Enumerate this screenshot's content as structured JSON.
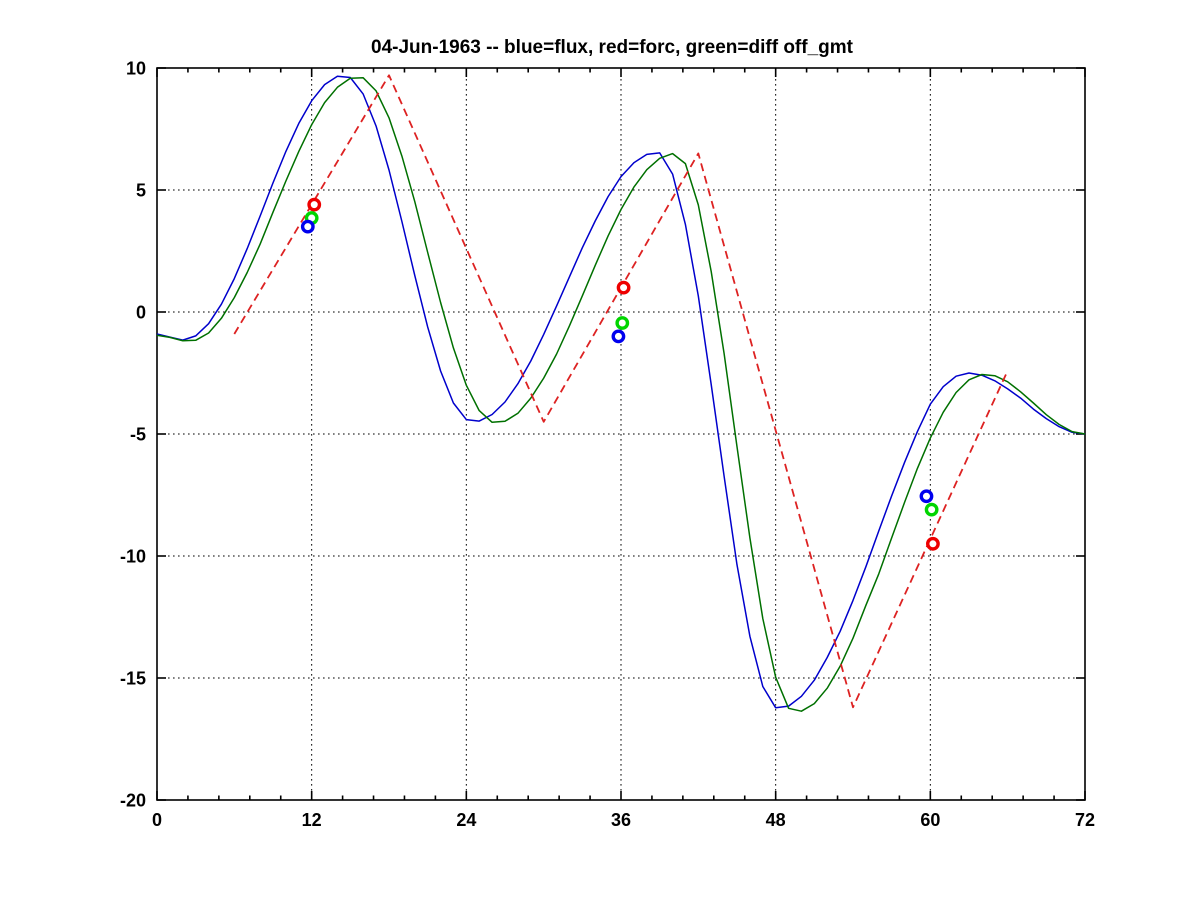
{
  "chart_data": {
    "type": "line",
    "title": "04-Jun-1963 -- blue=flux, red=forc, green=diff off_gmt",
    "xlabel": "",
    "ylabel": "",
    "xlim": [
      0,
      72
    ],
    "ylim": [
      -20,
      10
    ],
    "x_major_ticks": [
      0,
      12,
      24,
      36,
      48,
      60,
      72
    ],
    "x_major_tick_labels": [
      "0",
      "12",
      "24",
      "36",
      "48",
      "60",
      "72"
    ],
    "x_minor_step": 2.4,
    "y_major_ticks": [
      -20,
      -15,
      -10,
      -5,
      0,
      5,
      10
    ],
    "y_major_tick_labels": [
      "-20",
      "-15",
      "-10",
      "-5",
      "0",
      "5",
      "10"
    ],
    "grid": "dotted-at-major-ticks",
    "legend_position": "none (legend encoded in title)",
    "axis_color": "#000000",
    "background_color": "#ffffff",
    "series": [
      {
        "name": "flux",
        "color": "#0000cc",
        "style": "solid",
        "line_width": 1.5,
        "x_start": 0,
        "x_step": 1,
        "y": [
          -0.9,
          -1.03,
          -1.15,
          -0.98,
          -0.48,
          0.32,
          1.37,
          2.6,
          3.93,
          5.29,
          6.58,
          7.73,
          8.66,
          9.32,
          9.66,
          9.61,
          8.93,
          7.62,
          5.82,
          3.71,
          1.49,
          -0.62,
          -2.42,
          -3.73,
          -4.41,
          -4.47,
          -4.2,
          -3.69,
          -2.94,
          -2.01,
          -0.92,
          0.25,
          1.44,
          2.63,
          3.73,
          4.73,
          5.55,
          6.12,
          6.46,
          6.52,
          5.65,
          3.59,
          0.66,
          -2.97,
          -6.73,
          -10.36,
          -13.29,
          -15.35,
          -16.22,
          -16.15,
          -15.75,
          -15.09,
          -14.16,
          -13.09,
          -11.82,
          -10.44,
          -8.97,
          -7.53,
          -6.16,
          -4.9,
          -3.78,
          -3.06,
          -2.63,
          -2.5,
          -2.59,
          -2.82,
          -3.15,
          -3.53,
          -3.98,
          -4.37,
          -4.7,
          -4.93,
          -5.0
        ]
      },
      {
        "name": "diff",
        "color": "#007000",
        "style": "solid",
        "line_width": 1.5,
        "x_start": 0,
        "x_step": 1,
        "y": [
          -0.95,
          -1.04,
          -1.18,
          -1.16,
          -0.86,
          -0.26,
          0.59,
          1.62,
          2.78,
          4.09,
          5.37,
          6.58,
          7.68,
          8.58,
          9.21,
          9.58,
          9.6,
          9.06,
          7.96,
          6.39,
          4.52,
          2.44,
          0.39,
          -1.47,
          -3.0,
          -4.04,
          -4.52,
          -4.48,
          -4.15,
          -3.53,
          -2.71,
          -1.72,
          -0.57,
          0.66,
          1.91,
          3.12,
          4.2,
          5.12,
          5.83,
          6.3,
          6.49,
          6.08,
          4.39,
          1.66,
          -1.7,
          -5.52,
          -9.26,
          -12.56,
          -14.97,
          -16.24,
          -16.36,
          -16.05,
          -15.42,
          -14.52,
          -13.37,
          -12.02,
          -10.73,
          -9.25,
          -7.8,
          -6.41,
          -5.17,
          -4.11,
          -3.3,
          -2.78,
          -2.56,
          -2.61,
          -2.86,
          -3.27,
          -3.73,
          -4.21,
          -4.61,
          -4.9,
          -5.0
        ]
      },
      {
        "name": "forc",
        "color": "#dd2222",
        "style": "dashed",
        "line_width": 1.8,
        "x": [
          6,
          18,
          30,
          42,
          54,
          66
        ],
        "y": [
          -0.9,
          9.7,
          -4.5,
          6.5,
          -16.2,
          -2.4
        ]
      }
    ],
    "markers": [
      {
        "name": "forc-points",
        "shape": "open-circle",
        "color": "#ee0000",
        "points": [
          [
            12.2,
            4.4
          ],
          [
            36.2,
            1.0
          ],
          [
            60.2,
            -9.5
          ]
        ]
      },
      {
        "name": "diff-points",
        "shape": "open-circle",
        "color": "#00d500",
        "points": [
          [
            12.0,
            3.85
          ],
          [
            36.1,
            -0.45
          ],
          [
            60.1,
            -8.1
          ]
        ]
      },
      {
        "name": "flux-points",
        "shape": "open-circle",
        "color": "#0000ee",
        "points": [
          [
            11.7,
            3.5
          ],
          [
            35.8,
            -1.0
          ],
          [
            59.7,
            -7.55
          ]
        ]
      }
    ]
  }
}
